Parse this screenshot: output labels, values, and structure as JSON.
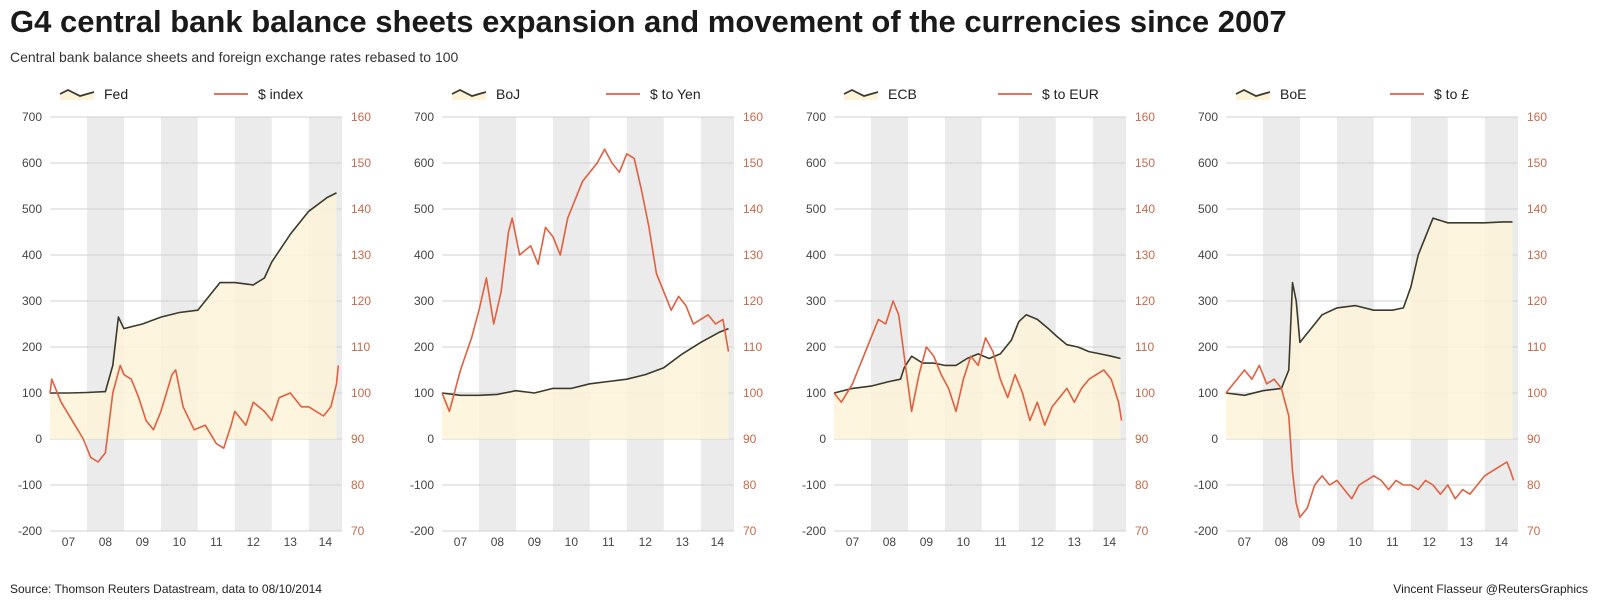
{
  "title": "G4 central bank balance sheets expansion and movement of the currencies since 2007",
  "subtitle": "Central bank balance sheets and foreign exchange rates rebased to 100",
  "source": "Source: Thomson Reuters Datastream, data to 08/10/2014",
  "credit": "Vincent Flasseur @ReutersGraphics",
  "colors": {
    "balance_line": "#3a3a2e",
    "balance_fill": "#fdf3d8",
    "fx_line": "#e0603f",
    "shade": "#ebebeb",
    "grid": "#d0d0d0",
    "right_axis": "#c8694a"
  },
  "chart_data": [
    {
      "type": "line",
      "balance_legend": "Fed",
      "fx_legend": "$ index",
      "x_ticks": [
        "07",
        "08",
        "09",
        "10",
        "11",
        "12",
        "13",
        "14"
      ],
      "x_range": [
        2007.0,
        2014.9
      ],
      "ylim_left": [
        -200,
        700
      ],
      "yticks_left": [
        "700",
        "600",
        "500",
        "400",
        "300",
        "200",
        "100",
        "0",
        "-100",
        "-200"
      ],
      "ylim_right": [
        70,
        160
      ],
      "yticks_right": [
        "160",
        "150",
        "140",
        "130",
        "120",
        "110",
        "100",
        "90",
        "80",
        "70"
      ],
      "balance_series": [
        [
          2007.0,
          100
        ],
        [
          2007.5,
          100
        ],
        [
          2008.0,
          101
        ],
        [
          2008.5,
          103
        ],
        [
          2008.7,
          160
        ],
        [
          2008.85,
          265
        ],
        [
          2009.0,
          240
        ],
        [
          2009.5,
          250
        ],
        [
          2010.0,
          265
        ],
        [
          2010.5,
          275
        ],
        [
          2011.0,
          280
        ],
        [
          2011.4,
          320
        ],
        [
          2011.6,
          340
        ],
        [
          2012.0,
          340
        ],
        [
          2012.5,
          335
        ],
        [
          2012.8,
          350
        ],
        [
          2013.0,
          385
        ],
        [
          2013.5,
          445
        ],
        [
          2014.0,
          495
        ],
        [
          2014.5,
          525
        ],
        [
          2014.75,
          535
        ]
      ],
      "fx_series": [
        [
          2007.0,
          100
        ],
        [
          2007.05,
          103
        ],
        [
          2007.3,
          98
        ],
        [
          2007.6,
          94
        ],
        [
          2007.9,
          90
        ],
        [
          2008.1,
          86
        ],
        [
          2008.3,
          85
        ],
        [
          2008.5,
          87
        ],
        [
          2008.7,
          100
        ],
        [
          2008.9,
          106
        ],
        [
          2009.0,
          104
        ],
        [
          2009.2,
          103
        ],
        [
          2009.4,
          99
        ],
        [
          2009.6,
          94
        ],
        [
          2009.8,
          92
        ],
        [
          2010.0,
          96
        ],
        [
          2010.3,
          104
        ],
        [
          2010.4,
          105
        ],
        [
          2010.6,
          97
        ],
        [
          2010.9,
          92
        ],
        [
          2011.2,
          93
        ],
        [
          2011.5,
          89
        ],
        [
          2011.7,
          88
        ],
        [
          2011.9,
          93
        ],
        [
          2012.0,
          96
        ],
        [
          2012.3,
          93
        ],
        [
          2012.5,
          98
        ],
        [
          2012.8,
          96
        ],
        [
          2013.0,
          94
        ],
        [
          2013.2,
          99
        ],
        [
          2013.5,
          100
        ],
        [
          2013.8,
          97
        ],
        [
          2014.0,
          97
        ],
        [
          2014.4,
          95
        ],
        [
          2014.6,
          97
        ],
        [
          2014.75,
          102
        ],
        [
          2014.8,
          106
        ]
      ]
    },
    {
      "type": "line",
      "balance_legend": "BoJ",
      "fx_legend": "$ to Yen",
      "x_ticks": [
        "07",
        "08",
        "09",
        "10",
        "11",
        "12",
        "13",
        "14"
      ],
      "x_range": [
        2007.0,
        2014.9
      ],
      "ylim_left": [
        -200,
        700
      ],
      "yticks_left": [
        "700",
        "600",
        "500",
        "400",
        "300",
        "200",
        "100",
        "0",
        "-100",
        "-200"
      ],
      "ylim_right": [
        70,
        160
      ],
      "yticks_right": [
        "160",
        "150",
        "140",
        "130",
        "120",
        "110",
        "100",
        "90",
        "80",
        "70"
      ],
      "balance_series": [
        [
          2007.0,
          100
        ],
        [
          2007.5,
          95
        ],
        [
          2008.0,
          95
        ],
        [
          2008.5,
          97
        ],
        [
          2009.0,
          105
        ],
        [
          2009.5,
          100
        ],
        [
          2010.0,
          110
        ],
        [
          2010.5,
          110
        ],
        [
          2011.0,
          120
        ],
        [
          2011.5,
          125
        ],
        [
          2012.0,
          130
        ],
        [
          2012.5,
          140
        ],
        [
          2013.0,
          155
        ],
        [
          2013.5,
          185
        ],
        [
          2014.0,
          210
        ],
        [
          2014.5,
          232
        ],
        [
          2014.75,
          240
        ]
      ],
      "fx_series": [
        [
          2007.0,
          100
        ],
        [
          2007.2,
          96
        ],
        [
          2007.5,
          105
        ],
        [
          2007.8,
          112
        ],
        [
          2008.0,
          118
        ],
        [
          2008.2,
          125
        ],
        [
          2008.4,
          115
        ],
        [
          2008.6,
          122
        ],
        [
          2008.8,
          135
        ],
        [
          2008.9,
          138
        ],
        [
          2009.1,
          130
        ],
        [
          2009.4,
          132
        ],
        [
          2009.6,
          128
        ],
        [
          2009.8,
          136
        ],
        [
          2010.0,
          134
        ],
        [
          2010.2,
          130
        ],
        [
          2010.4,
          138
        ],
        [
          2010.6,
          142
        ],
        [
          2010.8,
          146
        ],
        [
          2011.0,
          148
        ],
        [
          2011.2,
          150
        ],
        [
          2011.4,
          153
        ],
        [
          2011.6,
          150
        ],
        [
          2011.8,
          148
        ],
        [
          2012.0,
          152
        ],
        [
          2012.2,
          151
        ],
        [
          2012.4,
          144
        ],
        [
          2012.6,
          136
        ],
        [
          2012.8,
          126
        ],
        [
          2013.0,
          122
        ],
        [
          2013.2,
          118
        ],
        [
          2013.4,
          121
        ],
        [
          2013.6,
          119
        ],
        [
          2013.8,
          115
        ],
        [
          2014.0,
          116
        ],
        [
          2014.2,
          117
        ],
        [
          2014.4,
          115
        ],
        [
          2014.6,
          116
        ],
        [
          2014.75,
          109
        ]
      ]
    },
    {
      "type": "line",
      "balance_legend": "ECB",
      "fx_legend": "$ to EUR",
      "x_ticks": [
        "07",
        "08",
        "09",
        "10",
        "11",
        "12",
        "13",
        "14"
      ],
      "x_range": [
        2007.0,
        2014.9
      ],
      "ylim_left": [
        -200,
        700
      ],
      "yticks_left": [
        "700",
        "600",
        "500",
        "400",
        "300",
        "200",
        "100",
        "0",
        "-100",
        "-200"
      ],
      "ylim_right": [
        70,
        160
      ],
      "yticks_right": [
        "160",
        "150",
        "140",
        "130",
        "120",
        "110",
        "100",
        "90",
        "80",
        "70"
      ],
      "balance_series": [
        [
          2007.0,
          100
        ],
        [
          2007.5,
          110
        ],
        [
          2008.0,
          115
        ],
        [
          2008.5,
          125
        ],
        [
          2008.8,
          130
        ],
        [
          2008.9,
          155
        ],
        [
          2009.1,
          180
        ],
        [
          2009.4,
          165
        ],
        [
          2009.7,
          165
        ],
        [
          2010.0,
          160
        ],
        [
          2010.3,
          160
        ],
        [
          2010.6,
          175
        ],
        [
          2010.9,
          185
        ],
        [
          2011.2,
          175
        ],
        [
          2011.5,
          185
        ],
        [
          2011.8,
          215
        ],
        [
          2012.0,
          255
        ],
        [
          2012.2,
          270
        ],
        [
          2012.5,
          260
        ],
        [
          2012.8,
          240
        ],
        [
          2013.0,
          225
        ],
        [
          2013.3,
          205
        ],
        [
          2013.6,
          200
        ],
        [
          2013.9,
          190
        ],
        [
          2014.2,
          185
        ],
        [
          2014.5,
          180
        ],
        [
          2014.75,
          175
        ]
      ],
      "fx_series": [
        [
          2007.0,
          100
        ],
        [
          2007.2,
          98
        ],
        [
          2007.5,
          102
        ],
        [
          2007.8,
          108
        ],
        [
          2008.0,
          112
        ],
        [
          2008.2,
          116
        ],
        [
          2008.4,
          115
        ],
        [
          2008.6,
          120
        ],
        [
          2008.75,
          117
        ],
        [
          2008.9,
          108
        ],
        [
          2009.1,
          96
        ],
        [
          2009.3,
          104
        ],
        [
          2009.5,
          110
        ],
        [
          2009.7,
          108
        ],
        [
          2009.9,
          104
        ],
        [
          2010.1,
          101
        ],
        [
          2010.3,
          96
        ],
        [
          2010.5,
          103
        ],
        [
          2010.7,
          108
        ],
        [
          2010.9,
          106
        ],
        [
          2011.1,
          112
        ],
        [
          2011.3,
          109
        ],
        [
          2011.5,
          103
        ],
        [
          2011.7,
          99
        ],
        [
          2011.9,
          104
        ],
        [
          2012.1,
          100
        ],
        [
          2012.3,
          94
        ],
        [
          2012.5,
          98
        ],
        [
          2012.7,
          93
        ],
        [
          2012.9,
          97
        ],
        [
          2013.1,
          99
        ],
        [
          2013.3,
          101
        ],
        [
          2013.5,
          98
        ],
        [
          2013.7,
          101
        ],
        [
          2013.9,
          103
        ],
        [
          2014.1,
          104
        ],
        [
          2014.3,
          105
        ],
        [
          2014.5,
          103
        ],
        [
          2014.7,
          98
        ],
        [
          2014.78,
          94
        ]
      ]
    },
    {
      "type": "line",
      "balance_legend": "BoE",
      "fx_legend": "$ to £",
      "x_ticks": [
        "07",
        "08",
        "09",
        "10",
        "11",
        "12",
        "13",
        "14"
      ],
      "x_range": [
        2007.0,
        2014.9
      ],
      "ylim_left": [
        -200,
        700
      ],
      "yticks_left": [
        "700",
        "600",
        "500",
        "400",
        "300",
        "200",
        "100",
        "0",
        "-100",
        "-200"
      ],
      "ylim_right": [
        70,
        160
      ],
      "yticks_right": [
        "160",
        "150",
        "140",
        "130",
        "120",
        "110",
        "100",
        "90",
        "80",
        "70"
      ],
      "balance_series": [
        [
          2007.0,
          100
        ],
        [
          2007.5,
          95
        ],
        [
          2008.0,
          105
        ],
        [
          2008.5,
          110
        ],
        [
          2008.7,
          150
        ],
        [
          2008.8,
          340
        ],
        [
          2008.9,
          300
        ],
        [
          2009.0,
          210
        ],
        [
          2009.3,
          240
        ],
        [
          2009.6,
          270
        ],
        [
          2010.0,
          285
        ],
        [
          2010.5,
          290
        ],
        [
          2011.0,
          280
        ],
        [
          2011.5,
          280
        ],
        [
          2011.8,
          285
        ],
        [
          2012.0,
          330
        ],
        [
          2012.2,
          400
        ],
        [
          2012.4,
          440
        ],
        [
          2012.6,
          480
        ],
        [
          2012.8,
          475
        ],
        [
          2013.0,
          470
        ],
        [
          2013.5,
          470
        ],
        [
          2014.0,
          470
        ],
        [
          2014.5,
          472
        ],
        [
          2014.75,
          472
        ]
      ],
      "fx_series": [
        [
          2007.0,
          100
        ],
        [
          2007.2,
          102
        ],
        [
          2007.5,
          105
        ],
        [
          2007.7,
          103
        ],
        [
          2007.9,
          106
        ],
        [
          2008.1,
          102
        ],
        [
          2008.3,
          103
        ],
        [
          2008.5,
          101
        ],
        [
          2008.7,
          95
        ],
        [
          2008.8,
          83
        ],
        [
          2008.9,
          76
        ],
        [
          2009.0,
          73
        ],
        [
          2009.2,
          75
        ],
        [
          2009.4,
          80
        ],
        [
          2009.6,
          82
        ],
        [
          2009.8,
          80
        ],
        [
          2010.0,
          81
        ],
        [
          2010.2,
          79
        ],
        [
          2010.4,
          77
        ],
        [
          2010.6,
          80
        ],
        [
          2010.8,
          81
        ],
        [
          2011.0,
          82
        ],
        [
          2011.2,
          81
        ],
        [
          2011.4,
          79
        ],
        [
          2011.6,
          81
        ],
        [
          2011.8,
          80
        ],
        [
          2012.0,
          80
        ],
        [
          2012.2,
          79
        ],
        [
          2012.4,
          81
        ],
        [
          2012.6,
          80
        ],
        [
          2012.8,
          78
        ],
        [
          2013.0,
          80
        ],
        [
          2013.2,
          77
        ],
        [
          2013.4,
          79
        ],
        [
          2013.6,
          78
        ],
        [
          2013.8,
          80
        ],
        [
          2014.0,
          82
        ],
        [
          2014.2,
          83
        ],
        [
          2014.4,
          84
        ],
        [
          2014.6,
          85
        ],
        [
          2014.7,
          83
        ],
        [
          2014.78,
          81
        ]
      ]
    }
  ]
}
